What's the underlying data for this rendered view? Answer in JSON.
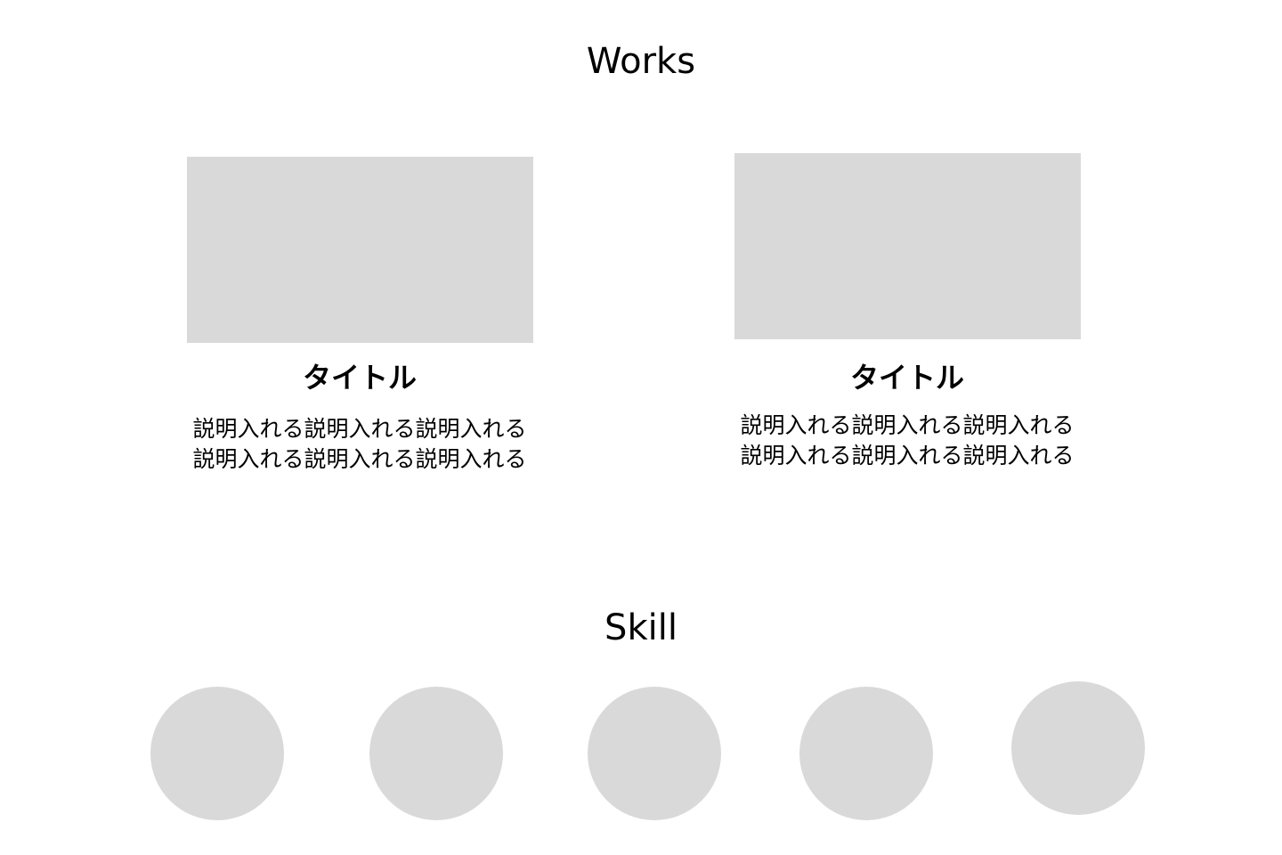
{
  "works": {
    "heading": "Works",
    "items": [
      {
        "title": "タイトル",
        "description_lines": [
          "説明入れる説明入れる説明入れる",
          "説明入れる説明入れる説明入れる"
        ]
      },
      {
        "title": "タイトル",
        "description_lines": [
          "説明入れる説明入れる説明入れる",
          "説明入れる説明入れる説明入れる"
        ]
      }
    ]
  },
  "skill": {
    "heading": "Skill",
    "item_count": 5
  },
  "colors": {
    "placeholder": "#d9d9d9",
    "text": "#000000",
    "background": "#ffffff"
  }
}
